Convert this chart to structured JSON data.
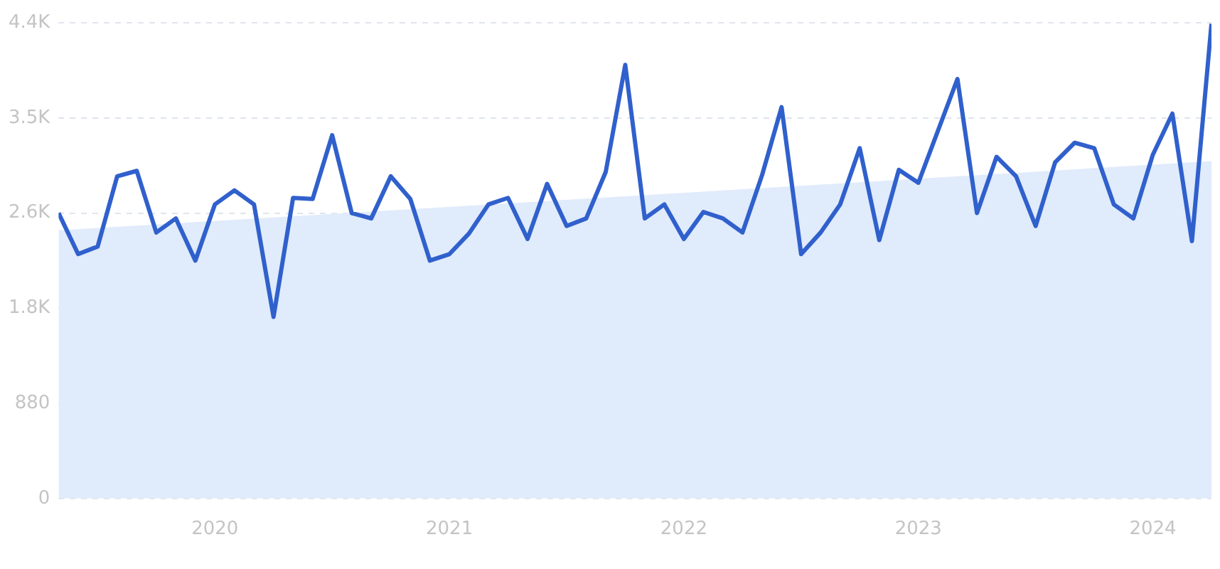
{
  "chart_data": {
    "type": "line",
    "x": [
      "2019-05",
      "2019-06",
      "2019-07",
      "2019-08",
      "2019-09",
      "2019-10",
      "2019-11",
      "2019-12",
      "2020-01",
      "2020-02",
      "2020-03",
      "2020-04",
      "2020-05",
      "2020-06",
      "2020-07",
      "2020-08",
      "2020-09",
      "2020-10",
      "2020-11",
      "2020-12",
      "2021-01",
      "2021-02",
      "2021-03",
      "2021-04",
      "2021-05",
      "2021-06",
      "2021-07",
      "2021-08",
      "2021-09",
      "2021-10",
      "2021-11",
      "2021-12",
      "2022-01",
      "2022-02",
      "2022-03",
      "2022-04",
      "2022-05",
      "2022-06",
      "2022-07",
      "2022-08",
      "2022-09",
      "2022-10",
      "2022-11",
      "2022-12",
      "2023-01",
      "2023-02",
      "2023-03",
      "2023-04",
      "2023-05",
      "2023-06",
      "2023-07",
      "2023-08",
      "2023-09",
      "2023-10",
      "2023-11",
      "2023-12",
      "2024-01",
      "2024-02",
      "2024-03",
      "2024-04"
    ],
    "series": [
      {
        "type": "area",
        "color": "#e0ebfb",
        "x": [
          "2019-05",
          "2024-04"
        ],
        "values": [
          2480,
          3120
        ]
      },
      {
        "color": "#3060cc",
        "values": [
          2640,
          2260,
          2330,
          2980,
          3030,
          2460,
          2590,
          2200,
          2720,
          2850,
          2720,
          1680,
          2780,
          2770,
          3360,
          2640,
          2590,
          2980,
          2770,
          2200,
          2260,
          2450,
          2720,
          2780,
          2400,
          2910,
          2520,
          2590,
          3020,
          4010,
          2590,
          2720,
          2400,
          2650,
          2590,
          2460,
          2990,
          3620,
          2260,
          2460,
          2720,
          3240,
          2390,
          3040,
          2920,
          3400,
          3880,
          2640,
          3160,
          2980,
          2520,
          3110,
          3290,
          3240,
          2720,
          2590,
          3180,
          3560,
          2380,
          4390
        ]
      }
    ],
    "xlim": [
      "2019-05",
      "2024-04"
    ],
    "xticks": [
      "2020",
      "2021",
      "2022",
      "2023",
      "2024"
    ],
    "ylim": [
      0,
      4400
    ],
    "yticks": [
      0,
      880,
      {
        "value": 1760,
        "label": "1.8K"
      },
      {
        "value": 2640,
        "label": "2.6K"
      },
      {
        "value": 3520,
        "label": "3.5K"
      },
      {
        "value": 4400,
        "label": "4.4K"
      }
    ],
    "grid": "y",
    "legend": false,
    "marker": "none",
    "line_style": "solid"
  }
}
